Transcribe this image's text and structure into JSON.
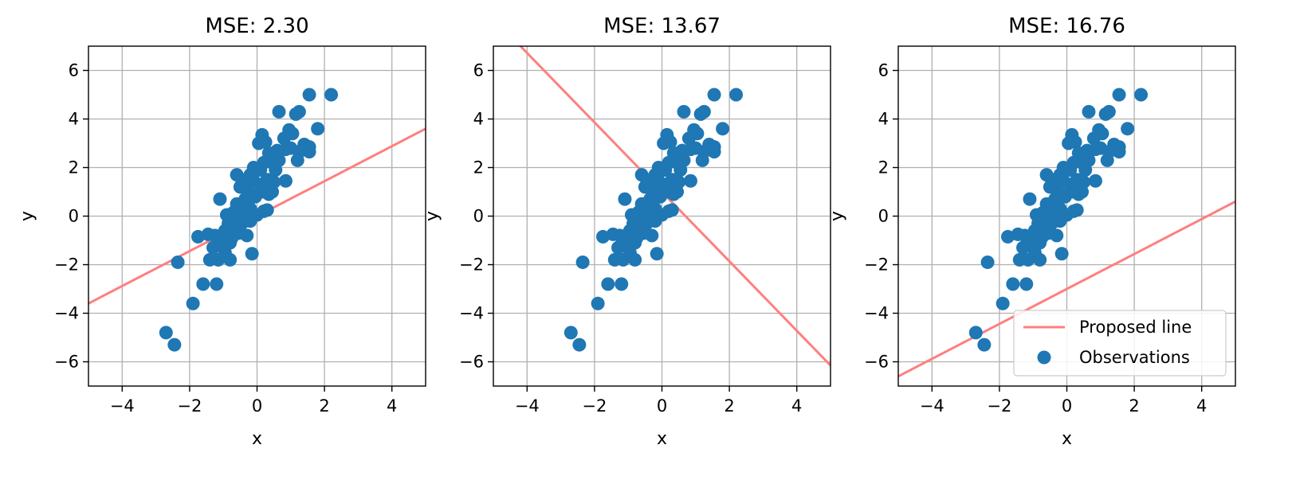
{
  "chart_data": [
    {
      "type": "scatter",
      "title": "MSE: 2.30",
      "xlabel": "x",
      "ylabel": "y",
      "xlim": [
        -5,
        5
      ],
      "ylim": [
        -7,
        7
      ],
      "xticks": [
        -4,
        -2,
        0,
        2,
        4
      ],
      "yticks": [
        -6,
        -4,
        -2,
        0,
        2,
        4,
        6
      ],
      "grid": true,
      "line": {
        "slope": 0.72,
        "intercept": 0.0
      },
      "legend": null
    },
    {
      "type": "scatter",
      "title": "MSE: 13.67",
      "xlabel": "x",
      "ylabel": "y",
      "xlim": [
        -5,
        5
      ],
      "ylim": [
        -7,
        7
      ],
      "xticks": [
        -4,
        -2,
        0,
        2,
        4
      ],
      "yticks": [
        -6,
        -4,
        -2,
        0,
        2,
        4,
        6
      ],
      "grid": true,
      "line": {
        "slope": -1.43,
        "intercept": 1.0
      },
      "legend": null
    },
    {
      "type": "scatter",
      "title": "MSE: 16.76",
      "xlabel": "x",
      "ylabel": "y",
      "xlim": [
        -5,
        5
      ],
      "ylim": [
        -7,
        7
      ],
      "xticks": [
        -4,
        -2,
        0,
        2,
        4
      ],
      "yticks": [
        -6,
        -4,
        -2,
        0,
        2,
        4,
        6
      ],
      "grid": true,
      "line": {
        "slope": 0.72,
        "intercept": -3.0
      },
      "legend": {
        "position": "lower-right",
        "entries": [
          "Proposed line",
          "Observations"
        ]
      }
    }
  ],
  "observations": [
    [
      2.2,
      5.0
    ],
    [
      1.55,
      5.0
    ],
    [
      1.25,
      4.3
    ],
    [
      1.15,
      4.2
    ],
    [
      0.65,
      4.3
    ],
    [
      0.15,
      3.35
    ],
    [
      0.25,
      3.05
    ],
    [
      0.05,
      3.0
    ],
    [
      0.95,
      3.55
    ],
    [
      1.05,
      3.4
    ],
    [
      0.8,
      3.2
    ],
    [
      1.8,
      3.6
    ],
    [
      1.4,
      2.95
    ],
    [
      1.55,
      2.85
    ],
    [
      1.55,
      2.65
    ],
    [
      1.25,
      2.65
    ],
    [
      1.2,
      2.3
    ],
    [
      0.85,
      2.75
    ],
    [
      1.0,
      2.8
    ],
    [
      0.6,
      2.7
    ],
    [
      0.35,
      2.6
    ],
    [
      0.45,
      2.2
    ],
    [
      0.65,
      2.3
    ],
    [
      0.55,
      1.9
    ],
    [
      0.2,
      2.2
    ],
    [
      0.1,
      1.9
    ],
    [
      -0.1,
      2.0
    ],
    [
      -0.2,
      1.7
    ],
    [
      0.85,
      1.45
    ],
    [
      0.5,
      1.4
    ],
    [
      0.3,
      1.5
    ],
    [
      0.1,
      1.3
    ],
    [
      0.35,
      0.9
    ],
    [
      0.2,
      1.0
    ],
    [
      0.45,
      1.0
    ],
    [
      -0.6,
      1.7
    ],
    [
      -0.45,
      1.5
    ],
    [
      -0.1,
      1.45
    ],
    [
      -0.3,
      1.2
    ],
    [
      -0.5,
      1.2
    ],
    [
      -0.15,
      0.9
    ],
    [
      -0.05,
      0.8
    ],
    [
      -0.35,
      0.7
    ],
    [
      -1.1,
      0.7
    ],
    [
      -0.6,
      0.5
    ],
    [
      -0.4,
      0.4
    ],
    [
      -0.2,
      0.3
    ],
    [
      -0.7,
      0.15
    ],
    [
      -0.5,
      0.0
    ],
    [
      -0.9,
      0.05
    ],
    [
      -0.25,
      -0.05
    ],
    [
      0.3,
      0.25
    ],
    [
      0.2,
      0.2
    ],
    [
      0.0,
      0.05
    ],
    [
      -0.85,
      -0.3
    ],
    [
      -0.6,
      -0.2
    ],
    [
      -0.45,
      -0.3
    ],
    [
      -0.2,
      -0.2
    ],
    [
      -0.7,
      -0.5
    ],
    [
      -0.95,
      -0.6
    ],
    [
      -0.55,
      -0.7
    ],
    [
      -0.75,
      -0.9
    ],
    [
      -0.3,
      -0.8
    ],
    [
      -1.0,
      -0.8
    ],
    [
      -1.45,
      -0.75
    ],
    [
      -1.25,
      -0.8
    ],
    [
      -1.75,
      -0.85
    ],
    [
      -1.0,
      -1.0
    ],
    [
      -0.8,
      -1.1
    ],
    [
      -1.1,
      -1.2
    ],
    [
      -1.3,
      -1.3
    ],
    [
      -0.95,
      -1.5
    ],
    [
      -0.8,
      -1.8
    ],
    [
      -1.15,
      -1.8
    ],
    [
      -1.4,
      -1.8
    ],
    [
      -0.15,
      -1.55
    ],
    [
      -2.35,
      -1.9
    ],
    [
      -1.6,
      -2.8
    ],
    [
      -1.2,
      -2.8
    ],
    [
      -1.9,
      -3.6
    ],
    [
      -2.7,
      -4.8
    ],
    [
      -2.45,
      -5.3
    ]
  ],
  "colors": {
    "observations": "#1f77b4",
    "proposed_line": "#ff7f7f",
    "grid": "#b0b0b0",
    "axes": "#000000"
  }
}
